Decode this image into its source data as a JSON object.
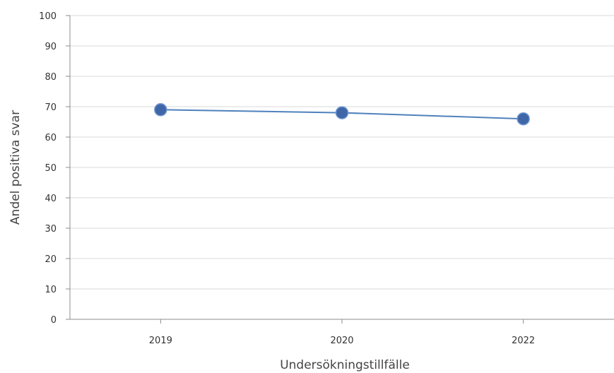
{
  "chart_data": {
    "type": "line",
    "title": "",
    "xlabel": "Undersökningstillfälle",
    "ylabel": "Andel positiva svar",
    "categories": [
      "2019",
      "2020",
      "2022"
    ],
    "series": [
      {
        "values": [
          69,
          68,
          66
        ]
      }
    ],
    "ylim": [
      0,
      100
    ],
    "yticks": [
      0,
      10,
      20,
      30,
      40,
      50,
      60,
      70,
      80,
      90,
      100
    ],
    "grid": true,
    "legend": "none",
    "colors": {
      "line": "#4f81bd",
      "marker": "#3f67a8",
      "grid": "#d9d9d9",
      "axis": "#8c8c8c"
    }
  }
}
